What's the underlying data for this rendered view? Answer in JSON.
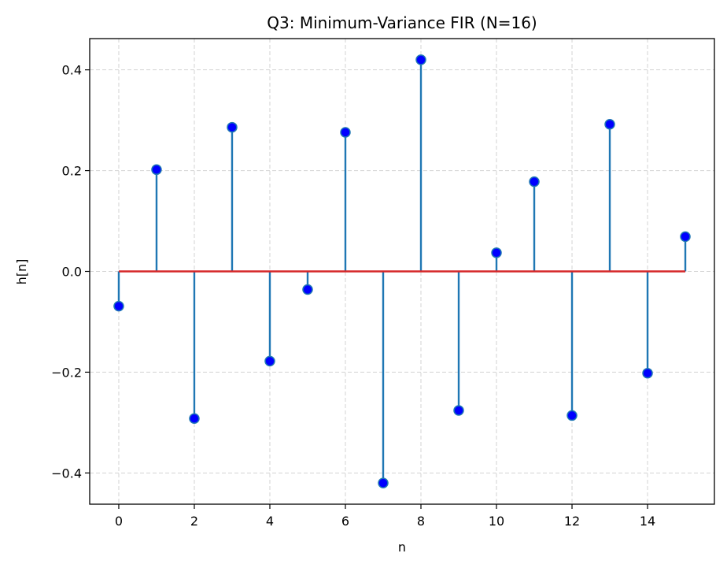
{
  "chart_data": {
    "type": "stem",
    "title": "Q3: Minimum-Variance FIR (N=16)",
    "xlabel": "n",
    "ylabel": "h[n]",
    "x": [
      0,
      1,
      2,
      3,
      4,
      5,
      6,
      7,
      8,
      9,
      10,
      11,
      12,
      13,
      14,
      15
    ],
    "values": [
      -0.069,
      0.202,
      -0.292,
      0.286,
      -0.178,
      -0.036,
      0.276,
      -0.42,
      0.42,
      -0.276,
      0.037,
      0.178,
      -0.286,
      0.292,
      -0.202,
      0.069
    ],
    "xlim": [
      -0.77,
      15.77
    ],
    "ylim": [
      -0.462,
      0.462
    ],
    "xticks": [
      0,
      2,
      4,
      6,
      8,
      10,
      12,
      14
    ],
    "xtick_labels": [
      "0",
      "2",
      "4",
      "6",
      "8",
      "10",
      "12",
      "14"
    ],
    "yticks": [
      -0.4,
      -0.2,
      0.0,
      0.2,
      0.4
    ],
    "ytick_labels": [
      "−0.4",
      "−0.2",
      "0.0",
      "0.2",
      "0.4"
    ],
    "baseline": 0,
    "grid": true,
    "colors": {
      "stem": "#1f77b4",
      "marker_fill": "#0000ff",
      "marker_edge": "#1f77b4",
      "baseline": "#d62728",
      "grid": "#d3d3d3"
    }
  }
}
